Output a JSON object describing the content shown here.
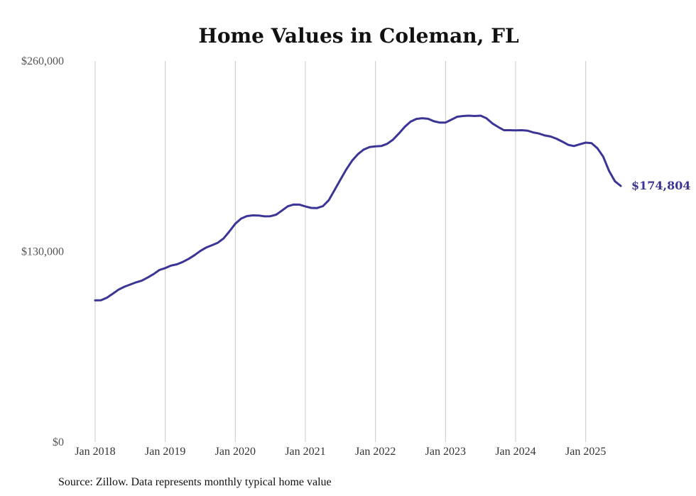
{
  "chart_data": {
    "type": "line",
    "title": "Home Values in Coleman, FL",
    "xlabel": "",
    "ylabel": "",
    "ylim": [
      0,
      260000
    ],
    "yticks": [
      0,
      130000,
      260000
    ],
    "ytick_labels": [
      "$0",
      "$130,000",
      "$260,000"
    ],
    "xticks": [
      "2018-01",
      "2019-01",
      "2020-01",
      "2021-01",
      "2022-01",
      "2023-01",
      "2024-01",
      "2025-01"
    ],
    "xtick_labels": [
      "Jan 2018",
      "Jan 2019",
      "Jan 2020",
      "Jan 2021",
      "Jan 2022",
      "Jan 2023",
      "Jan 2024",
      "Jan 2025"
    ],
    "x_range": [
      "2018-01",
      "2025-07"
    ],
    "grid": "vertical",
    "series_color": "#3b3596",
    "end_label": "$174,804",
    "source": "Source: Zillow. Data represents monthly typical home value",
    "series": [
      {
        "x": [
          "2018-01",
          "2018-02",
          "2018-03",
          "2018-04",
          "2018-05",
          "2018-06",
          "2018-07",
          "2018-08",
          "2018-09",
          "2018-10",
          "2018-11",
          "2018-12",
          "2019-01",
          "2019-02",
          "2019-03",
          "2019-04",
          "2019-05",
          "2019-06",
          "2019-07",
          "2019-08",
          "2019-09",
          "2019-10",
          "2019-11",
          "2019-12",
          "2020-01",
          "2020-02",
          "2020-03",
          "2020-04",
          "2020-05",
          "2020-06",
          "2020-07",
          "2020-08",
          "2020-09",
          "2020-10",
          "2020-11",
          "2020-12",
          "2021-01",
          "2021-02",
          "2021-03",
          "2021-04",
          "2021-05",
          "2021-06",
          "2021-07",
          "2021-08",
          "2021-09",
          "2021-10",
          "2021-11",
          "2021-12",
          "2022-01",
          "2022-02",
          "2022-03",
          "2022-04",
          "2022-05",
          "2022-06",
          "2022-07",
          "2022-08",
          "2022-09",
          "2022-10",
          "2022-11",
          "2022-12",
          "2023-01",
          "2023-02",
          "2023-03",
          "2023-04",
          "2023-05",
          "2023-06",
          "2023-07",
          "2023-08",
          "2023-09",
          "2023-10",
          "2023-11",
          "2023-12",
          "2024-01",
          "2024-02",
          "2024-03",
          "2024-04",
          "2024-05",
          "2024-06",
          "2024-07",
          "2024-08",
          "2024-09",
          "2024-10",
          "2024-11",
          "2024-12",
          "2025-01",
          "2025-02",
          "2025-03",
          "2025-04",
          "2025-05",
          "2025-06",
          "2025-07"
        ],
        "values": [
          96700,
          96800,
          98500,
          101200,
          104000,
          106000,
          107500,
          109000,
          110200,
          112300,
          114600,
          117400,
          118700,
          120400,
          121300,
          122900,
          125000,
          127500,
          130400,
          132700,
          134300,
          136000,
          139000,
          143800,
          149000,
          152500,
          154200,
          154700,
          154600,
          154000,
          154100,
          155200,
          158000,
          160900,
          162100,
          162000,
          160800,
          159800,
          159700,
          161000,
          165000,
          172000,
          179000,
          186000,
          192000,
          196500,
          199600,
          201300,
          201800,
          202000,
          203500,
          206300,
          210500,
          215000,
          218600,
          220500,
          221000,
          220600,
          218900,
          218000,
          218000,
          220000,
          222000,
          222500,
          222700,
          222500,
          222700,
          221000,
          217500,
          215000,
          212800,
          212800,
          212700,
          212800,
          212500,
          211300,
          210500,
          209200,
          208500,
          207000,
          205000,
          202800,
          202000,
          203200,
          204300,
          204000,
          200500,
          194800,
          185000,
          178000,
          174804
        ]
      }
    ]
  }
}
